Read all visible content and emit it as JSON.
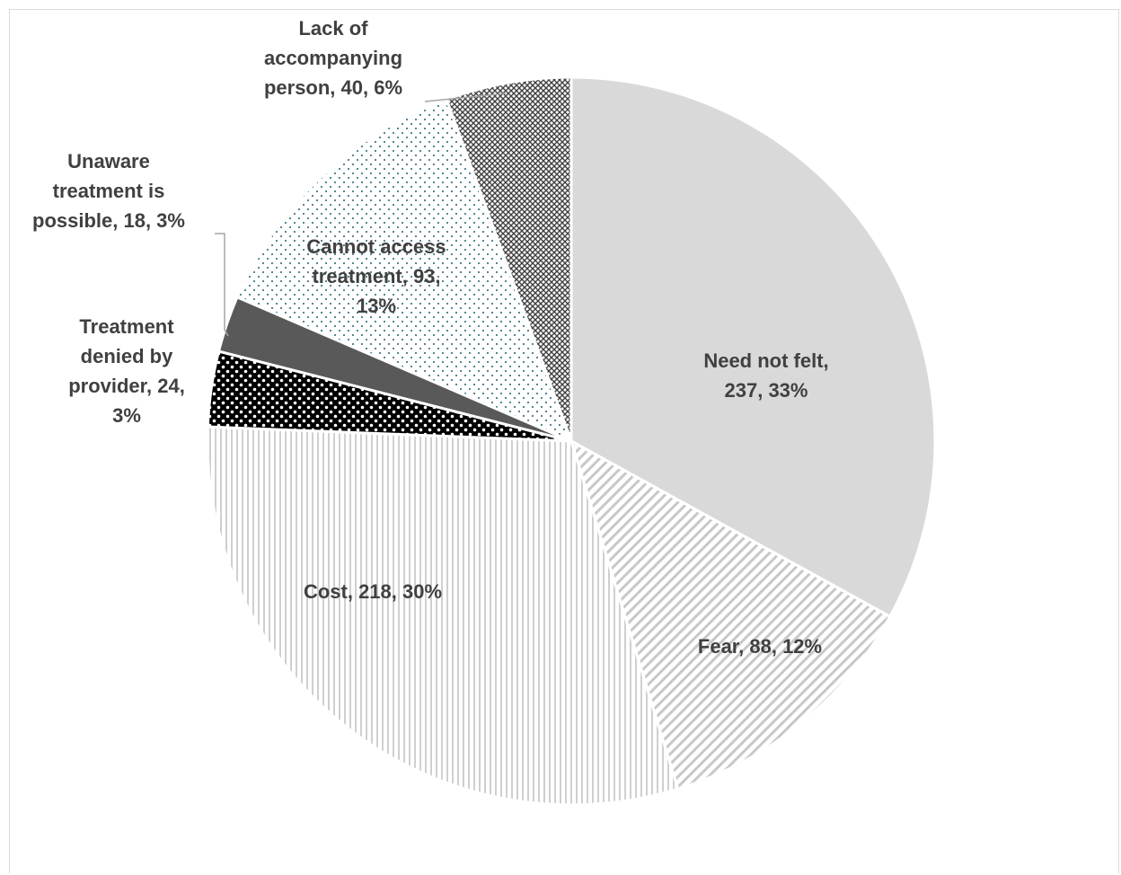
{
  "chart_data": {
    "type": "pie",
    "slices": [
      {
        "category": "Need not felt",
        "value": 237,
        "percent": "33%",
        "label_lines": [
          "Need not felt,",
          "237, 33%"
        ],
        "pattern": "solid-light",
        "color": "#d9d9d9"
      },
      {
        "category": "Fear",
        "value": 88,
        "percent": "12%",
        "label_lines": [
          "Fear, 88, 12%"
        ],
        "pattern": "diagonal-stripes",
        "color": "#c8c8c8"
      },
      {
        "category": "Cost",
        "value": 218,
        "percent": "30%",
        "label_lines": [
          "Cost, 218, 30%"
        ],
        "pattern": "vertical-stripes",
        "color": "#cfcfcf"
      },
      {
        "category": "Treatment denied by provider",
        "value": 24,
        "percent": "3%",
        "label_lines": [
          "Treatment",
          "denied by",
          "provider, 24,",
          "3%"
        ],
        "pattern": "checker-dots",
        "color": "#000000"
      },
      {
        "category": "Unaware treatment is possible",
        "value": 18,
        "percent": "3%",
        "label_lines": [
          "Unaware",
          "treatment is",
          "possible, 18, 3%"
        ],
        "pattern": "solid-dark",
        "color": "#595959"
      },
      {
        "category": "Cannot access treatment",
        "value": 93,
        "percent": "13%",
        "label_lines": [
          "Cannot access",
          "treatment, 93,",
          "13%"
        ],
        "pattern": "dotted-blue",
        "color": "#1f5f7a"
      },
      {
        "category": "Lack of accompanying person",
        "value": 40,
        "percent": "6%",
        "label_lines": [
          "Lack of",
          "accompanying",
          "person, 40, 6%"
        ],
        "pattern": "crosshatch",
        "color": "#404040"
      }
    ],
    "start_angle_deg": 0,
    "direction": "clockwise",
    "label_color": "#404040",
    "border_color": "#ffffff",
    "leader_line_color": "#a6a6a6"
  }
}
